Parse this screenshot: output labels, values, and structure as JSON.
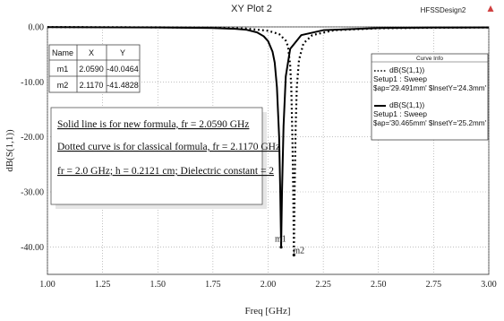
{
  "chart_data": {
    "type": "line",
    "title": "XY Plot 2",
    "design_label": "HFSSDesign2",
    "xlabel": "Freq [GHz]",
    "ylabel": "dB(S(1,1))",
    "xlim": [
      1.0,
      3.0
    ],
    "ylim": [
      -45,
      0
    ],
    "x_ticks": [
      "1.00",
      "1.25",
      "1.50",
      "1.75",
      "2.00",
      "2.25",
      "2.50",
      "2.75",
      "3.00"
    ],
    "y_ticks": [
      "0.00",
      "-10.00",
      "-20.00",
      "-30.00",
      "-40.00"
    ],
    "grid": true,
    "series": [
      {
        "name": "dB(S(1,1))",
        "setup": "Setup1 : Sweep",
        "params": "$ap='30.465mm' $lnsetY='25.2mm'",
        "style": "solid",
        "color": "#000000",
        "x": [
          1.0,
          1.5,
          1.75,
          1.85,
          1.9,
          1.95,
          1.98,
          2.0,
          2.02,
          2.03,
          2.04,
          2.05,
          2.055,
          2.059,
          2.063,
          2.07,
          2.08,
          2.1,
          2.15,
          2.25,
          2.5,
          2.75,
          3.0
        ],
        "y": [
          -0.05,
          -0.1,
          -0.2,
          -0.35,
          -0.5,
          -1.0,
          -1.7,
          -2.6,
          -4.5,
          -6.5,
          -11.0,
          -20.0,
          -30.0,
          -40.05,
          -30.0,
          -18.0,
          -9.0,
          -4.0,
          -1.5,
          -0.6,
          -0.2,
          -0.12,
          -0.1
        ]
      },
      {
        "name": "dB(S(1,1))",
        "setup": "Setup1 : Sweep",
        "params": "$ap='29.491mm' $lnsetY='24.3mm'",
        "style": "dotted",
        "color": "#000000",
        "x": [
          1.0,
          1.5,
          1.75,
          1.9,
          2.0,
          2.05,
          2.08,
          2.09,
          2.1,
          2.105,
          2.11,
          2.114,
          2.117,
          2.12,
          2.125,
          2.13,
          2.14,
          2.16,
          2.2,
          2.3,
          2.5,
          2.75,
          3.0
        ],
        "y": [
          -0.03,
          -0.08,
          -0.15,
          -0.3,
          -0.7,
          -1.3,
          -2.5,
          -3.5,
          -7.0,
          -11.0,
          -20.0,
          -30.0,
          -41.48,
          -30.0,
          -18.0,
          -11.0,
          -6.0,
          -3.0,
          -1.5,
          -0.6,
          -0.25,
          -0.15,
          -0.1
        ]
      }
    ],
    "markers": {
      "headers": [
        "Name",
        "X",
        "Y"
      ],
      "rows": [
        {
          "name": "m1",
          "x": "2.0590",
          "y": "-40.0464",
          "xv": 2.059,
          "yv": -40.0464
        },
        {
          "name": "m2",
          "x": "2.1170",
          "y": "-41.4828",
          "xv": 2.117,
          "yv": -41.4828
        }
      ]
    },
    "legend": {
      "title": "Curve Info",
      "placement": "top-right"
    },
    "annotations": [
      "Solid line is for new formula, fr = 2.0590 GHz",
      "Dotted curve is for classical formula, fr = 2.1170 GHz",
      "fr = 2.0 GHz; h = 0.2121 cm; Dielectric constant = 2"
    ]
  }
}
